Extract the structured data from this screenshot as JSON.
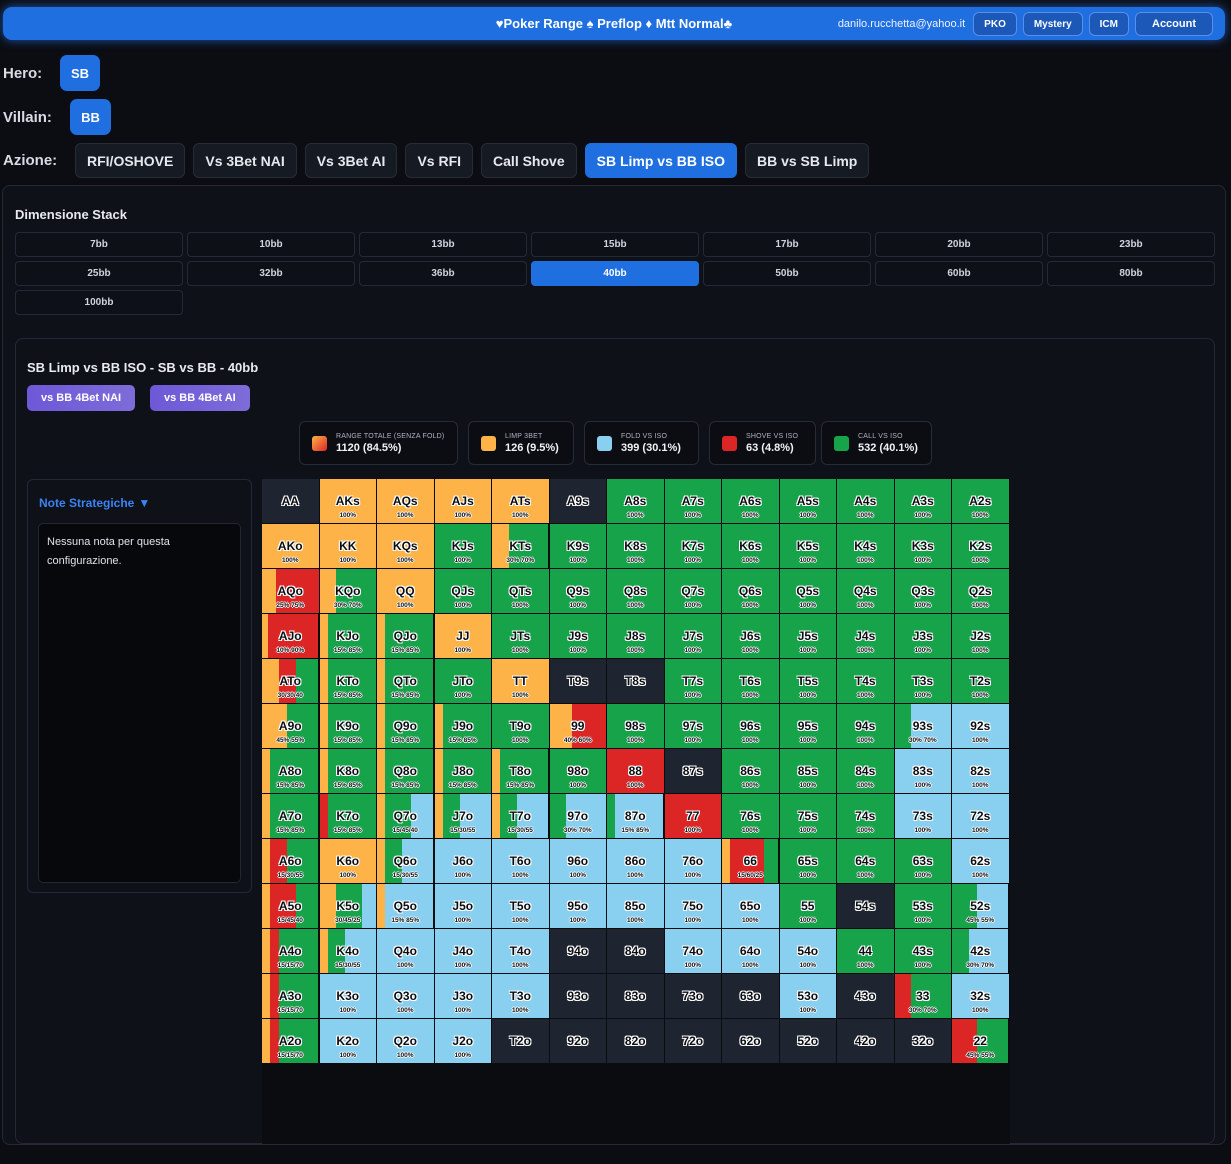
{
  "header": {
    "title": "♥Poker Range ♠ Preflop ♦ Mtt Normal♣",
    "email": "danilo.rucchetta@yahoo.it",
    "buttons": [
      "PKO",
      "Mystery",
      "ICM",
      "Account"
    ]
  },
  "hero": {
    "label": "Hero:",
    "value": "SB"
  },
  "villain": {
    "label": "Villain:",
    "value": "BB"
  },
  "azione": {
    "label": "Azione:",
    "tabs": [
      "RFI/OSHOVE",
      "Vs 3Bet NAI",
      "Vs 3Bet AI",
      "Vs RFI",
      "Call Shove",
      "SB Limp vs BB ISO",
      "BB vs SB Limp"
    ],
    "active": 5
  },
  "stack": {
    "title": "Dimensione Stack",
    "options": [
      "7bb",
      "10bb",
      "13bb",
      "15bb",
      "17bb",
      "20bb",
      "23bb",
      "25bb",
      "32bb",
      "36bb",
      "40bb",
      "50bb",
      "60bb",
      "80bb",
      "100bb"
    ],
    "active": 10
  },
  "range": {
    "title": "SB Limp vs BB ISO - SB vs BB - 40bb",
    "subbuttons": [
      "vs BB 4Bet NAI",
      "vs BB 4Bet AI"
    ]
  },
  "legend": [
    {
      "key": "total",
      "label": "RANGE TOTALE (SENZA FOLD)",
      "value": "1120 (84.5%)"
    },
    {
      "key": "limp3bet",
      "label": "LIMP 3BET",
      "value": "126 (9.5%)"
    },
    {
      "key": "fold",
      "label": "FOLD VS ISO",
      "value": "399 (30.1%)"
    },
    {
      "key": "shove",
      "label": "SHOVE VS ISO",
      "value": "63 (4.8%)"
    },
    {
      "key": "call",
      "label": "CALL VS ISO",
      "value": "532 (40.1%)"
    }
  ],
  "colors": {
    "O": "#fdb347",
    "F": "#89cff0",
    "S": "#dc2626",
    "C": "#16a34a",
    "N": "#1e2430"
  },
  "notes": {
    "title": "Note Strategiche",
    "text": "Nessuna nota per questa configurazione."
  },
  "matrix": [
    [
      [
        "AA",
        "N",
        ""
      ],
      [
        "AKs",
        "O",
        "100%"
      ],
      [
        "AQs",
        "O",
        "100%"
      ],
      [
        "AJs",
        "O",
        "100%"
      ],
      [
        "ATs",
        "O",
        "100%"
      ],
      [
        "A9s",
        "N",
        ""
      ],
      [
        "A8s",
        "C",
        "100%"
      ],
      [
        "A7s",
        "C",
        "100%"
      ],
      [
        "A6s",
        "C",
        "100%"
      ],
      [
        "A5s",
        "C",
        "100%"
      ],
      [
        "A4s",
        "C",
        "100%"
      ],
      [
        "A3s",
        "C",
        "100%"
      ],
      [
        "A2s",
        "C",
        "100%"
      ]
    ],
    [
      [
        "AKo",
        "O",
        "100%"
      ],
      [
        "KK",
        "O",
        "100%"
      ],
      [
        "KQs",
        "O",
        "100%"
      ],
      [
        "KJs",
        "C",
        "100%"
      ],
      [
        "KTs",
        "O30C70",
        "30% 70%"
      ],
      [
        "K9s",
        "C",
        "100%"
      ],
      [
        "K8s",
        "C",
        "100%"
      ],
      [
        "K7s",
        "C",
        "100%"
      ],
      [
        "K6s",
        "C",
        "100%"
      ],
      [
        "K5s",
        "C",
        "100%"
      ],
      [
        "K4s",
        "C",
        "100%"
      ],
      [
        "K3s",
        "C",
        "100%"
      ],
      [
        "K2s",
        "C",
        "100%"
      ]
    ],
    [
      [
        "AQo",
        "O25S75",
        "25% 75%"
      ],
      [
        "KQo",
        "O30C70",
        "30% 70%"
      ],
      [
        "QQ",
        "O",
        "100%"
      ],
      [
        "QJs",
        "C",
        "100%"
      ],
      [
        "QTs",
        "C",
        "100%"
      ],
      [
        "Q9s",
        "C",
        "100%"
      ],
      [
        "Q8s",
        "C",
        "100%"
      ],
      [
        "Q7s",
        "C",
        "100%"
      ],
      [
        "Q6s",
        "C",
        "100%"
      ],
      [
        "Q5s",
        "C",
        "100%"
      ],
      [
        "Q4s",
        "C",
        "100%"
      ],
      [
        "Q3s",
        "C",
        "100%"
      ],
      [
        "Q2s",
        "C",
        "100%"
      ]
    ],
    [
      [
        "AJo",
        "O10S90",
        "10% 90%"
      ],
      [
        "KJo",
        "O15C85",
        "15% 85%"
      ],
      [
        "QJo",
        "O15C85",
        "15% 85%"
      ],
      [
        "JJ",
        "O",
        "100%"
      ],
      [
        "JTs",
        "C",
        "100%"
      ],
      [
        "J9s",
        "C",
        "100%"
      ],
      [
        "J8s",
        "C",
        "100%"
      ],
      [
        "J7s",
        "C",
        "100%"
      ],
      [
        "J6s",
        "C",
        "100%"
      ],
      [
        "J5s",
        "C",
        "100%"
      ],
      [
        "J4s",
        "C",
        "100%"
      ],
      [
        "J3s",
        "C",
        "100%"
      ],
      [
        "J2s",
        "C",
        "100%"
      ]
    ],
    [
      [
        "ATo",
        "O30S30C40",
        "30/30/40"
      ],
      [
        "KTo",
        "O15C85",
        "15% 85%"
      ],
      [
        "QTo",
        "O15C85",
        "15% 85%"
      ],
      [
        "JTo",
        "C",
        "100%"
      ],
      [
        "TT",
        "O",
        "100%"
      ],
      [
        "T9s",
        "N",
        ""
      ],
      [
        "T8s",
        "N",
        ""
      ],
      [
        "T7s",
        "C",
        "100%"
      ],
      [
        "T6s",
        "C",
        "100%"
      ],
      [
        "T5s",
        "C",
        "100%"
      ],
      [
        "T4s",
        "C",
        "100%"
      ],
      [
        "T3s",
        "C",
        "100%"
      ],
      [
        "T2s",
        "C",
        "100%"
      ]
    ],
    [
      [
        "A9o",
        "O45C55",
        "45% 55%"
      ],
      [
        "K9o",
        "O15C85",
        "15% 85%"
      ],
      [
        "Q9o",
        "O15C85",
        "15% 85%"
      ],
      [
        "J9o",
        "O15C85",
        "15% 85%"
      ],
      [
        "T9o",
        "C",
        "100%"
      ],
      [
        "99",
        "O40S60",
        "40% 60%"
      ],
      [
        "98s",
        "C",
        "100%"
      ],
      [
        "97s",
        "C",
        "100%"
      ],
      [
        "96s",
        "C",
        "100%"
      ],
      [
        "95s",
        "C",
        "100%"
      ],
      [
        "94s",
        "C",
        "100%"
      ],
      [
        "93s",
        "C30F70",
        "30% 70%"
      ],
      [
        "92s",
        "F",
        "100%"
      ]
    ],
    [
      [
        "A8o",
        "O15C85",
        "15% 85%"
      ],
      [
        "K8o",
        "O15C85",
        "15% 85%"
      ],
      [
        "Q8o",
        "O15C85",
        "15% 85%"
      ],
      [
        "J8o",
        "O15C85",
        "15% 85%"
      ],
      [
        "T8o",
        "O15C85",
        "15% 85%"
      ],
      [
        "98o",
        "C",
        "100%"
      ],
      [
        "88",
        "S",
        "100%"
      ],
      [
        "87s",
        "N",
        ""
      ],
      [
        "86s",
        "C",
        "100%"
      ],
      [
        "85s",
        "C",
        "100%"
      ],
      [
        "84s",
        "C",
        "100%"
      ],
      [
        "83s",
        "F",
        "100%"
      ],
      [
        "82s",
        "F",
        "100%"
      ]
    ],
    [
      [
        "A7o",
        "O15C85",
        "15% 85%"
      ],
      [
        "K7o",
        "S15C85",
        "15% 85%"
      ],
      [
        "Q7o",
        "O15C45F40",
        "15/45/40"
      ],
      [
        "J7o",
        "O15C30F55",
        "15/30/55"
      ],
      [
        "T7o",
        "O15C30F55",
        "15/30/55"
      ],
      [
        "97o",
        "C30F70",
        "30% 70%"
      ],
      [
        "87o",
        "C15F85",
        "15% 85%"
      ],
      [
        "77",
        "S",
        "100%"
      ],
      [
        "76s",
        "C",
        "100%"
      ],
      [
        "75s",
        "C",
        "100%"
      ],
      [
        "74s",
        "C",
        "100%"
      ],
      [
        "73s",
        "F",
        "100%"
      ],
      [
        "72s",
        "F",
        "100%"
      ]
    ],
    [
      [
        "A6o",
        "O15S30C55",
        "15/30/55"
      ],
      [
        "K6o",
        "O",
        "100%"
      ],
      [
        "Q6o",
        "O15C30F55",
        "15/30/55"
      ],
      [
        "J6o",
        "F",
        "100%"
      ],
      [
        "T6o",
        "F",
        "100%"
      ],
      [
        "96o",
        "F",
        "100%"
      ],
      [
        "86o",
        "F",
        "100%"
      ],
      [
        "76o",
        "F",
        "100%"
      ],
      [
        "66",
        "O15S60C25",
        "15/60/25"
      ],
      [
        "65s",
        "C",
        "100%"
      ],
      [
        "64s",
        "C",
        "100%"
      ],
      [
        "63s",
        "C",
        "100%"
      ],
      [
        "62s",
        "F",
        "100%"
      ]
    ],
    [
      [
        "A5o",
        "O15S45C40",
        "15/45/40"
      ],
      [
        "K5o",
        "O30C45F25",
        "30/45/25"
      ],
      [
        "Q5o",
        "O15F85",
        "15% 85%"
      ],
      [
        "J5o",
        "F",
        "100%"
      ],
      [
        "T5o",
        "F",
        "100%"
      ],
      [
        "95o",
        "F",
        "100%"
      ],
      [
        "85o",
        "F",
        "100%"
      ],
      [
        "75o",
        "F",
        "100%"
      ],
      [
        "65o",
        "F",
        "100%"
      ],
      [
        "55",
        "C",
        "100%"
      ],
      [
        "54s",
        "N",
        ""
      ],
      [
        "53s",
        "C",
        "100%"
      ],
      [
        "52s",
        "C45F55",
        "45% 55%"
      ]
    ],
    [
      [
        "A4o",
        "O15S15C70",
        "15/15/70"
      ],
      [
        "K4o",
        "O15C30F55",
        "15/30/55"
      ],
      [
        "Q4o",
        "F",
        "100%"
      ],
      [
        "J4o",
        "F",
        "100%"
      ],
      [
        "T4o",
        "F",
        "100%"
      ],
      [
        "94o",
        "N",
        ""
      ],
      [
        "84o",
        "N",
        ""
      ],
      [
        "74o",
        "F",
        "100%"
      ],
      [
        "64o",
        "F",
        "100%"
      ],
      [
        "54o",
        "F",
        "100%"
      ],
      [
        "44",
        "C",
        "100%"
      ],
      [
        "43s",
        "C",
        "100%"
      ],
      [
        "42s",
        "C30F70",
        "30% 70%"
      ]
    ],
    [
      [
        "A3o",
        "O15S15C70",
        "15/15/70"
      ],
      [
        "K3o",
        "F",
        "100%"
      ],
      [
        "Q3o",
        "F",
        "100%"
      ],
      [
        "J3o",
        "F",
        "100%"
      ],
      [
        "T3o",
        "F",
        "100%"
      ],
      [
        "93o",
        "N",
        ""
      ],
      [
        "83o",
        "N",
        ""
      ],
      [
        "73o",
        "N",
        ""
      ],
      [
        "63o",
        "N",
        ""
      ],
      [
        "53o",
        "F",
        "100%"
      ],
      [
        "43o",
        "N",
        ""
      ],
      [
        "33",
        "S30C70",
        "30% 70%"
      ],
      [
        "32s",
        "F",
        "100%"
      ]
    ],
    [
      [
        "A2o",
        "O15S15C70",
        "15/15/70"
      ],
      [
        "K2o",
        "F",
        "100%"
      ],
      [
        "Q2o",
        "F",
        "100%"
      ],
      [
        "J2o",
        "F",
        "100%"
      ],
      [
        "T2o",
        "N",
        ""
      ],
      [
        "92o",
        "N",
        ""
      ],
      [
        "82o",
        "N",
        ""
      ],
      [
        "72o",
        "N",
        ""
      ],
      [
        "62o",
        "N",
        ""
      ],
      [
        "52o",
        "N",
        ""
      ],
      [
        "42o",
        "N",
        ""
      ],
      [
        "32o",
        "N",
        ""
      ],
      [
        "22",
        "S45C55",
        "45% 55%"
      ]
    ]
  ]
}
